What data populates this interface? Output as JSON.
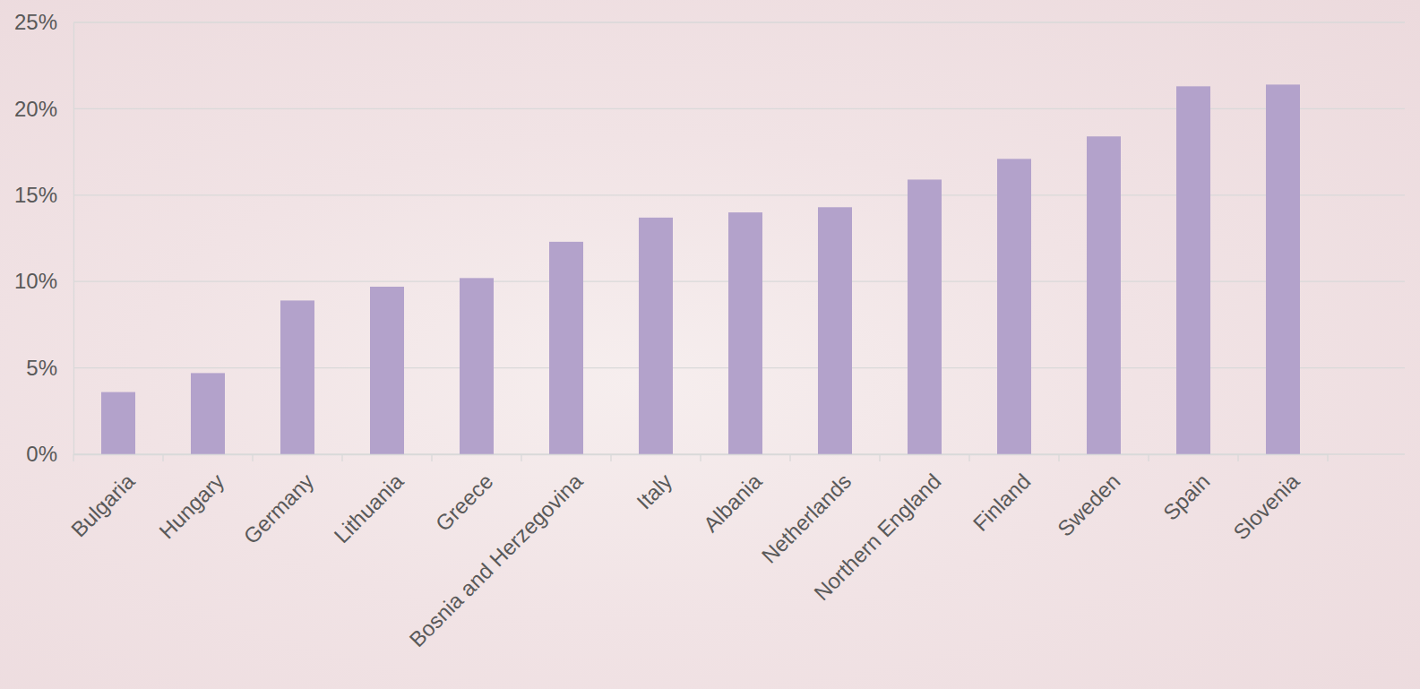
{
  "chart_data": {
    "type": "bar",
    "categories": [
      "Bulgaria",
      "Hungary",
      "Germany",
      "Lithuania",
      "Greece",
      "Bosnia and Herzegovina",
      "Italy",
      "Albania",
      "Netherlands",
      "Northern England",
      "Finland",
      "Sweden",
      "Spain",
      "Slovenia"
    ],
    "values": [
      3.6,
      4.7,
      8.9,
      9.7,
      10.2,
      12.3,
      13.7,
      14.0,
      14.3,
      15.9,
      17.1,
      18.4,
      21.3,
      21.4
    ],
    "color": "#b3a2cb",
    "ylim": [
      0,
      25
    ],
    "yticks": [
      {
        "value": 0,
        "label": "0%"
      },
      {
        "value": 5,
        "label": "5%"
      },
      {
        "value": 10,
        "label": "10%"
      },
      {
        "value": 15,
        "label": "15%"
      },
      {
        "value": 20,
        "label": "20%"
      },
      {
        "value": 25,
        "label": "25%"
      }
    ],
    "grid": true
  }
}
